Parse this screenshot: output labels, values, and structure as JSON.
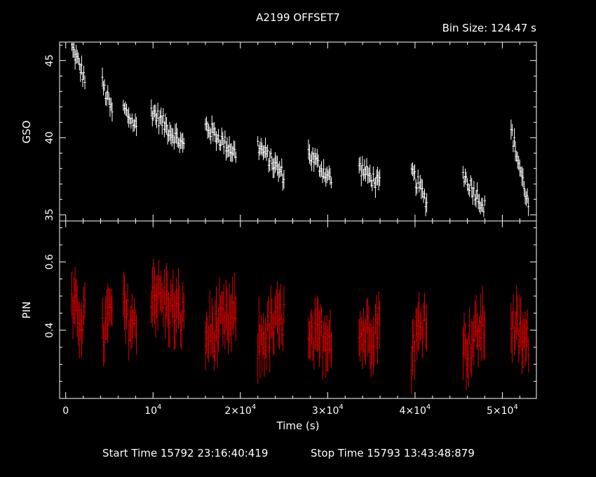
{
  "chart_data": {
    "type": "scatter",
    "title": "A2199 OFFSET7",
    "bin_label": "Bin Size: 124.47 s",
    "xlabel": "Time (s)",
    "xlim": [
      -700,
      53900
    ],
    "x_tick_labels": [
      "0",
      "10^4",
      "2×10^4",
      "3×10^4",
      "4×10^4",
      "5×10^4"
    ],
    "x_ticks": [
      0,
      10000,
      20000,
      30000,
      40000,
      50000
    ],
    "footer_start": "Start Time 15792 23:16:40:419",
    "footer_stop": "Stop Time 15793 13:43:48:879",
    "panels": [
      {
        "name": "GSO",
        "ylabel": "GSO",
        "color": "#ffffff",
        "ylim": [
          34.6,
          46.2
        ],
        "y_ticks": [
          35,
          40,
          45
        ],
        "y_tick_labels": [
          "35",
          "40",
          "45"
        ],
        "segments": [
          {
            "x0": 700,
            "x1": 2200,
            "y0": 45.9,
            "y1": 43.8
          },
          {
            "x0": 4200,
            "x1": 5400,
            "y0": 43.5,
            "y1": 41.5
          },
          {
            "x0": 6600,
            "x1": 8200,
            "y0": 41.9,
            "y1": 40.6
          },
          {
            "x0": 9800,
            "x1": 13600,
            "y0": 41.8,
            "y1": 39.4
          },
          {
            "x0": 16000,
            "x1": 19600,
            "y0": 40.8,
            "y1": 38.9
          },
          {
            "x0": 22000,
            "x1": 25000,
            "y0": 39.5,
            "y1": 37.5
          },
          {
            "x0": 27800,
            "x1": 30500,
            "y0": 39.0,
            "y1": 37.2
          },
          {
            "x0": 33600,
            "x1": 36000,
            "y0": 38.1,
            "y1": 36.9
          },
          {
            "x0": 39600,
            "x1": 41400,
            "y0": 37.8,
            "y1": 35.8
          },
          {
            "x0": 45500,
            "x1": 48000,
            "y0": 37.6,
            "y1": 35.5
          },
          {
            "x0": 51000,
            "x1": 53000,
            "y0": 40.5,
            "y1": 35.6
          }
        ]
      },
      {
        "name": "PIN",
        "ylabel": "PIN",
        "color": "#dd0000",
        "ylim": [
          0.2,
          0.72
        ],
        "y_ticks": [
          0.4,
          0.6
        ],
        "y_tick_labels": [
          "0.4",
          "0.6"
        ],
        "segments": [
          {
            "x0": 700,
            "x1": 2200,
            "y0": 0.45,
            "y1": 0.44
          },
          {
            "x0": 4200,
            "x1": 5400,
            "y0": 0.38,
            "y1": 0.47
          },
          {
            "x0": 6600,
            "x1": 8200,
            "y0": 0.45,
            "y1": 0.4
          },
          {
            "x0": 9800,
            "x1": 13600,
            "y0": 0.52,
            "y1": 0.43
          },
          {
            "x0": 16000,
            "x1": 19600,
            "y0": 0.38,
            "y1": 0.44
          },
          {
            "x0": 22000,
            "x1": 25000,
            "y0": 0.36,
            "y1": 0.44
          },
          {
            "x0": 27800,
            "x1": 30500,
            "y0": 0.35,
            "y1": 0.4
          },
          {
            "x0": 33600,
            "x1": 36000,
            "y0": 0.38,
            "y1": 0.42
          },
          {
            "x0": 39600,
            "x1": 41400,
            "y0": 0.34,
            "y1": 0.46
          },
          {
            "x0": 45500,
            "x1": 48000,
            "y0": 0.34,
            "y1": 0.42
          },
          {
            "x0": 51000,
            "x1": 53000,
            "y0": 0.42,
            "y1": 0.35
          }
        ]
      }
    ]
  }
}
